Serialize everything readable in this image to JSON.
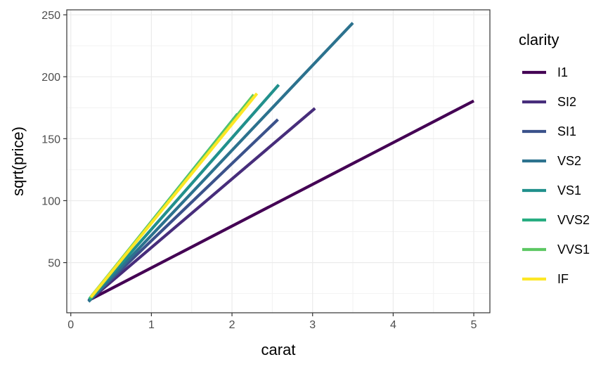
{
  "chart_data": {
    "type": "line",
    "title": "",
    "xlabel": "carat",
    "ylabel": "sqrt(price)",
    "xlim": [
      -0.05,
      5.2
    ],
    "ylim": [
      9.5,
      254
    ],
    "x_ticks": [
      0,
      1,
      2,
      3,
      4,
      5
    ],
    "y_ticks": [
      50,
      100,
      150,
      200,
      250
    ],
    "grid": true,
    "legend": {
      "title": "clarity",
      "position": "right"
    },
    "series": [
      {
        "name": "I1",
        "color": "#440154",
        "x": [
          0.22,
          5.0
        ],
        "y": [
          19.5,
          180.5
        ]
      },
      {
        "name": "SI2",
        "color": "#472D7B",
        "x": [
          0.22,
          3.03
        ],
        "y": [
          19.0,
          174.5
        ]
      },
      {
        "name": "SI1",
        "color": "#3B528B",
        "x": [
          0.22,
          2.57
        ],
        "y": [
          19.0,
          165.5
        ]
      },
      {
        "name": "VS2",
        "color": "#2C728E",
        "x": [
          0.22,
          3.5
        ],
        "y": [
          18.5,
          243.5
        ]
      },
      {
        "name": "VS1",
        "color": "#21908C",
        "x": [
          0.23,
          2.58
        ],
        "y": [
          20.0,
          193.5
        ]
      },
      {
        "name": "VVS2",
        "color": "#27AD81",
        "x": [
          0.23,
          2.07
        ],
        "y": [
          20.5,
          170.0
        ]
      },
      {
        "name": "VVS1",
        "color": "#5DC863",
        "x": [
          0.24,
          2.27
        ],
        "y": [
          21.5,
          185.5
        ]
      },
      {
        "name": "IF",
        "color": "#FDE725",
        "x": [
          0.25,
          2.31
        ],
        "y": [
          22.0,
          186.5
        ]
      }
    ]
  }
}
